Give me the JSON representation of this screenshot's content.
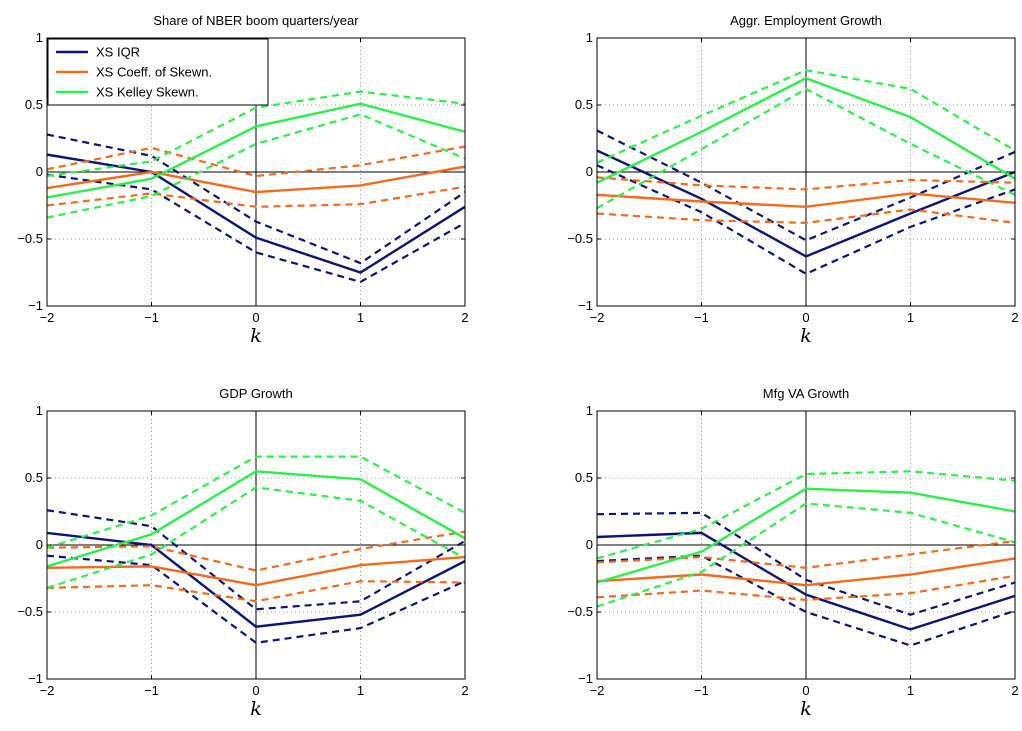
{
  "colors": {
    "iqr": "#0c1478",
    "skew": "#f26b1d",
    "kelley": "#2cf04a"
  },
  "legend": {
    "entries": [
      {
        "label": "XS IQR",
        "color": "#0c1478"
      },
      {
        "label": "XS Coeff. of Skewn.",
        "color": "#f26b1d"
      },
      {
        "label": "XS Kelley Skewn.",
        "color": "#2cf04a"
      }
    ]
  },
  "chart_data": [
    {
      "type": "line",
      "title": "Share of NBER boom quarters/year",
      "xlabel": "k",
      "ylabel": "",
      "x": [
        -2,
        -1,
        0,
        1,
        2
      ],
      "xlim": [
        -2,
        2
      ],
      "ylim": [
        -1,
        1
      ],
      "xticks": [
        "−2",
        "−1",
        "0",
        "1",
        "2"
      ],
      "yticks": [
        "−1",
        "−0.5",
        "0",
        "0.5",
        "1"
      ],
      "grid": true,
      "legend": "top-left",
      "series": [
        {
          "name": "XS IQR",
          "color": "#0c1478",
          "values": [
            0.13,
            0.0,
            -0.49,
            -0.75,
            -0.26
          ],
          "lower": [
            -0.02,
            -0.13,
            -0.6,
            -0.82,
            -0.38
          ],
          "upper": [
            0.28,
            0.12,
            -0.37,
            -0.68,
            -0.15
          ]
        },
        {
          "name": "XS Coeff. of Skewn.",
          "color": "#f26b1d",
          "values": [
            -0.12,
            0.0,
            -0.15,
            -0.1,
            0.04
          ],
          "lower": [
            -0.25,
            -0.16,
            -0.26,
            -0.24,
            -0.11
          ],
          "upper": [
            0.02,
            0.18,
            -0.03,
            0.05,
            0.19
          ]
        },
        {
          "name": "XS Kelley Skewn.",
          "color": "#2cf04a",
          "values": [
            -0.19,
            -0.05,
            0.34,
            0.51,
            0.3
          ],
          "lower": [
            -0.34,
            -0.18,
            0.21,
            0.43,
            0.1
          ],
          "upper": [
            -0.03,
            0.08,
            0.48,
            0.6,
            0.51
          ]
        }
      ]
    },
    {
      "type": "line",
      "title": "Aggr. Employment Growth",
      "xlabel": "k",
      "ylabel": "",
      "x": [
        -2,
        -1,
        0,
        1,
        2
      ],
      "xlim": [
        -2,
        2
      ],
      "ylim": [
        -1,
        1
      ],
      "xticks": [
        "−2",
        "−1",
        "0",
        "1",
        "2"
      ],
      "yticks": [
        "−1",
        "−0.5",
        "0",
        "0.5",
        "1"
      ],
      "grid": true,
      "series": [
        {
          "name": "XS IQR",
          "color": "#0c1478",
          "values": [
            0.16,
            -0.2,
            -0.63,
            -0.31,
            0.0
          ],
          "lower": [
            0.05,
            -0.3,
            -0.76,
            -0.41,
            -0.13
          ],
          "upper": [
            0.31,
            -0.08,
            -0.51,
            -0.19,
            0.15
          ]
        },
        {
          "name": "XS Coeff. of Skewn.",
          "color": "#f26b1d",
          "values": [
            -0.17,
            -0.22,
            -0.26,
            -0.16,
            -0.23
          ],
          "lower": [
            -0.31,
            -0.36,
            -0.38,
            -0.28,
            -0.38
          ],
          "upper": [
            -0.04,
            -0.1,
            -0.13,
            -0.06,
            -0.08
          ]
        },
        {
          "name": "XS Kelley Skewn.",
          "color": "#2cf04a",
          "values": [
            -0.08,
            0.3,
            0.7,
            0.41,
            -0.05
          ],
          "lower": [
            -0.27,
            0.17,
            0.62,
            0.21,
            -0.17
          ],
          "upper": [
            0.07,
            0.42,
            0.76,
            0.62,
            0.16
          ]
        }
      ]
    },
    {
      "type": "line",
      "title": "GDP Growth",
      "xlabel": "k",
      "ylabel": "",
      "x": [
        -2,
        -1,
        0,
        1,
        2
      ],
      "xlim": [
        -2,
        2
      ],
      "ylim": [
        -1,
        1
      ],
      "xticks": [
        "−2",
        "−1",
        "0",
        "1",
        "2"
      ],
      "yticks": [
        "−1",
        "−0.5",
        "0",
        "0.5",
        "1"
      ],
      "grid": true,
      "series": [
        {
          "name": "XS IQR",
          "color": "#0c1478",
          "values": [
            0.09,
            0.0,
            -0.61,
            -0.52,
            -0.12
          ],
          "lower": [
            -0.08,
            -0.15,
            -0.73,
            -0.62,
            -0.27
          ],
          "upper": [
            0.26,
            0.14,
            -0.48,
            -0.42,
            0.03
          ]
        },
        {
          "name": "XS Coeff. of Skewn.",
          "color": "#f26b1d",
          "values": [
            -0.17,
            -0.16,
            -0.3,
            -0.15,
            -0.09
          ],
          "lower": [
            -0.32,
            -0.3,
            -0.42,
            -0.27,
            -0.28
          ],
          "upper": [
            -0.02,
            -0.01,
            -0.19,
            -0.03,
            0.1
          ]
        },
        {
          "name": "XS Kelley Skewn.",
          "color": "#2cf04a",
          "values": [
            -0.16,
            0.08,
            0.55,
            0.49,
            0.05
          ],
          "lower": [
            -0.32,
            -0.07,
            0.43,
            0.33,
            -0.1
          ],
          "upper": [
            -0.02,
            0.22,
            0.66,
            0.66,
            0.24
          ]
        }
      ]
    },
    {
      "type": "line",
      "title": "Mfg VA Growth",
      "xlabel": "k",
      "ylabel": "",
      "x": [
        -2,
        -1,
        0,
        1,
        2
      ],
      "xlim": [
        -2,
        2
      ],
      "ylim": [
        -1,
        1
      ],
      "xticks": [
        "−2",
        "−1",
        "0",
        "1",
        "2"
      ],
      "yticks": [
        "−1",
        "−0.5",
        "0",
        "0.5",
        "1"
      ],
      "grid": true,
      "series": [
        {
          "name": "XS IQR",
          "color": "#0c1478",
          "values": [
            0.06,
            0.09,
            -0.37,
            -0.63,
            -0.38
          ],
          "lower": [
            -0.12,
            -0.08,
            -0.5,
            -0.75,
            -0.49
          ],
          "upper": [
            0.23,
            0.24,
            -0.26,
            -0.52,
            -0.28
          ]
        },
        {
          "name": "XS Coeff. of Skewn.",
          "color": "#f26b1d",
          "values": [
            -0.27,
            -0.22,
            -0.3,
            -0.22,
            -0.1
          ],
          "lower": [
            -0.39,
            -0.34,
            -0.41,
            -0.36,
            -0.23
          ],
          "upper": [
            -0.13,
            -0.09,
            -0.17,
            -0.07,
            0.03
          ]
        },
        {
          "name": "XS Kelley Skewn.",
          "color": "#2cf04a",
          "values": [
            -0.28,
            -0.05,
            0.42,
            0.39,
            0.25
          ],
          "lower": [
            -0.46,
            -0.2,
            0.31,
            0.24,
            0.02
          ],
          "upper": [
            -0.1,
            0.12,
            0.53,
            0.55,
            0.48
          ]
        }
      ]
    }
  ]
}
